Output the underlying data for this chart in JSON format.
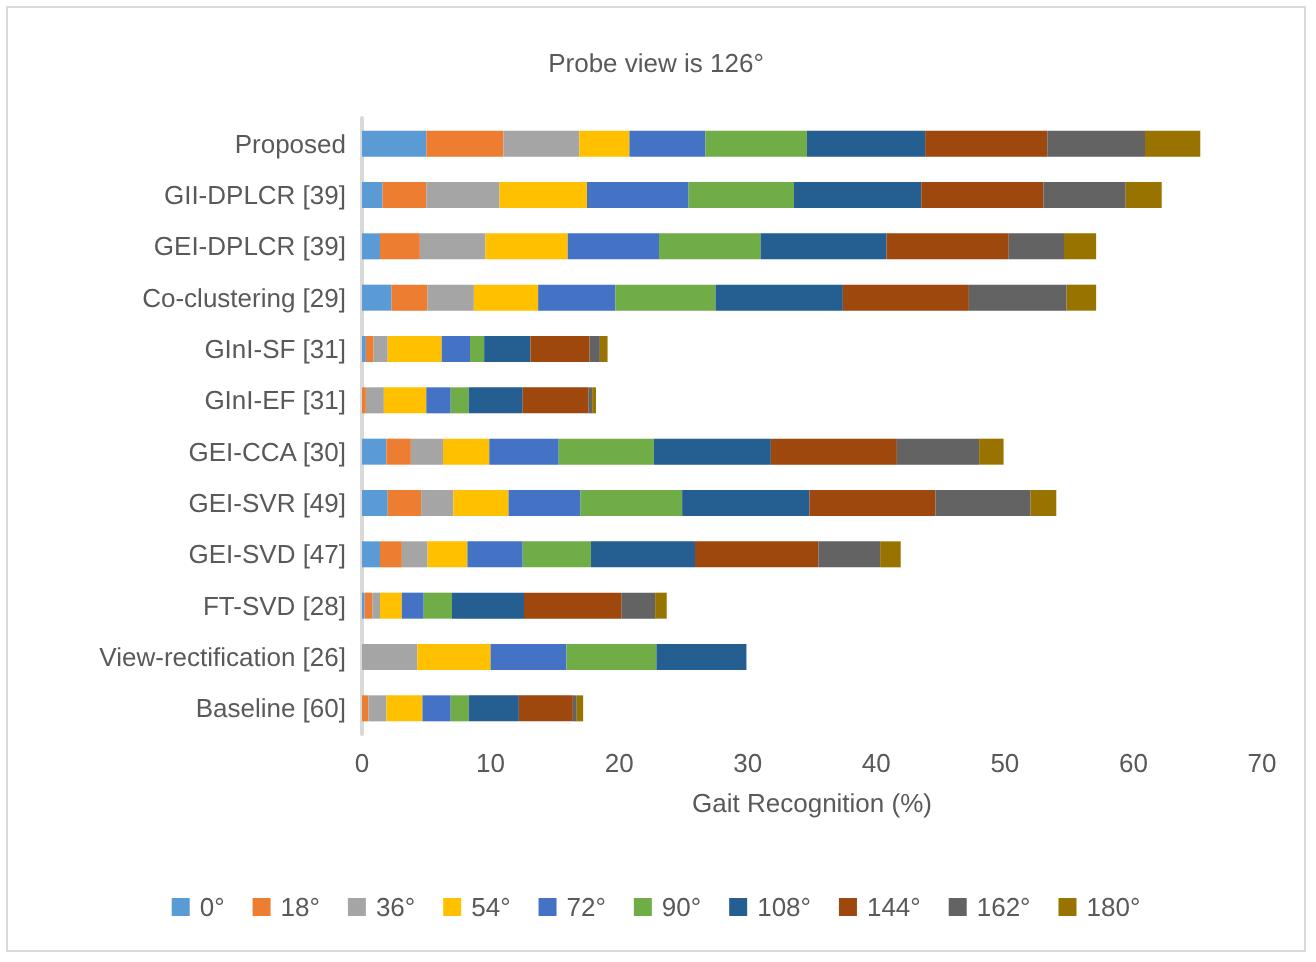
{
  "chart_data": {
    "type": "bar",
    "orientation": "horizontal",
    "stacked": true,
    "title": "Probe view is 126°",
    "xlabel": "Gait Recognition (%)",
    "categories": [
      "Proposed",
      "GII-DPLCR [39]",
      "GEI-DPLCR [39]",
      "Co-clustering [29]",
      "GInI-SF [31]",
      "GInI-EF [31]",
      "GEI-CCA [30]",
      "GEI-SVR [49]",
      "GEI-SVD [47]",
      "FT-SVD [28]",
      "View-rectification [26]",
      "Baseline [60]"
    ],
    "xlim": [
      0,
      70
    ],
    "xticks": [
      0,
      10,
      20,
      30,
      40,
      50,
      60,
      70
    ],
    "grid": false,
    "legend": "bottom",
    "series": [
      {
        "name": "0°",
        "color": "#5b9bd5",
        "values": [
          5.0,
          1.6,
          1.4,
          2.3,
          0.3,
          0,
          1.9,
          2.0,
          1.4,
          0.2,
          0,
          0
        ]
      },
      {
        "name": "18°",
        "color": "#ed7d31",
        "values": [
          6.0,
          3.4,
          3.1,
          2.8,
          0.6,
          0.3,
          1.9,
          2.6,
          1.7,
          0.6,
          0,
          0.5
        ]
      },
      {
        "name": "36°",
        "color": "#a5a5a5",
        "values": [
          5.9,
          5.7,
          5.1,
          3.6,
          1.1,
          1.4,
          2.5,
          2.5,
          2.0,
          0.6,
          4.3,
          1.4
        ]
      },
      {
        "name": "54°",
        "color": "#ffc000",
        "values": [
          3.9,
          6.8,
          6.4,
          5.0,
          4.2,
          3.3,
          3.6,
          4.3,
          3.1,
          1.7,
          5.7,
          2.8
        ]
      },
      {
        "name": "72°",
        "color": "#4472c4",
        "values": [
          5.9,
          7.9,
          7.1,
          6.0,
          2.2,
          1.9,
          5.4,
          5.6,
          4.3,
          1.7,
          5.9,
          2.2
        ]
      },
      {
        "name": "90°",
        "color": "#70ad47",
        "values": [
          7.9,
          8.2,
          7.9,
          7.8,
          1.1,
          1.4,
          7.4,
          7.9,
          5.3,
          2.2,
          7.0,
          1.4
        ]
      },
      {
        "name": "108°",
        "color": "#255e91",
        "values": [
          9.2,
          9.9,
          9.8,
          9.9,
          3.6,
          4.2,
          9.1,
          9.9,
          8.1,
          5.6,
          7.0,
          3.9
        ]
      },
      {
        "name": "144°",
        "color": "#9e480e",
        "values": [
          9.5,
          9.5,
          9.5,
          9.8,
          4.6,
          5.1,
          9.8,
          9.8,
          9.6,
          7.6,
          0,
          4.2
        ]
      },
      {
        "name": "162°",
        "color": "#636363",
        "values": [
          7.6,
          6.4,
          4.3,
          7.6,
          0.8,
          0.3,
          6.4,
          7.4,
          4.8,
          2.6,
          0,
          0.3
        ]
      },
      {
        "name": "180°",
        "color": "#997300",
        "values": [
          4.3,
          2.8,
          2.5,
          2.3,
          0.6,
          0.3,
          1.9,
          2.0,
          1.6,
          0.9,
          0,
          0.5
        ]
      }
    ]
  }
}
